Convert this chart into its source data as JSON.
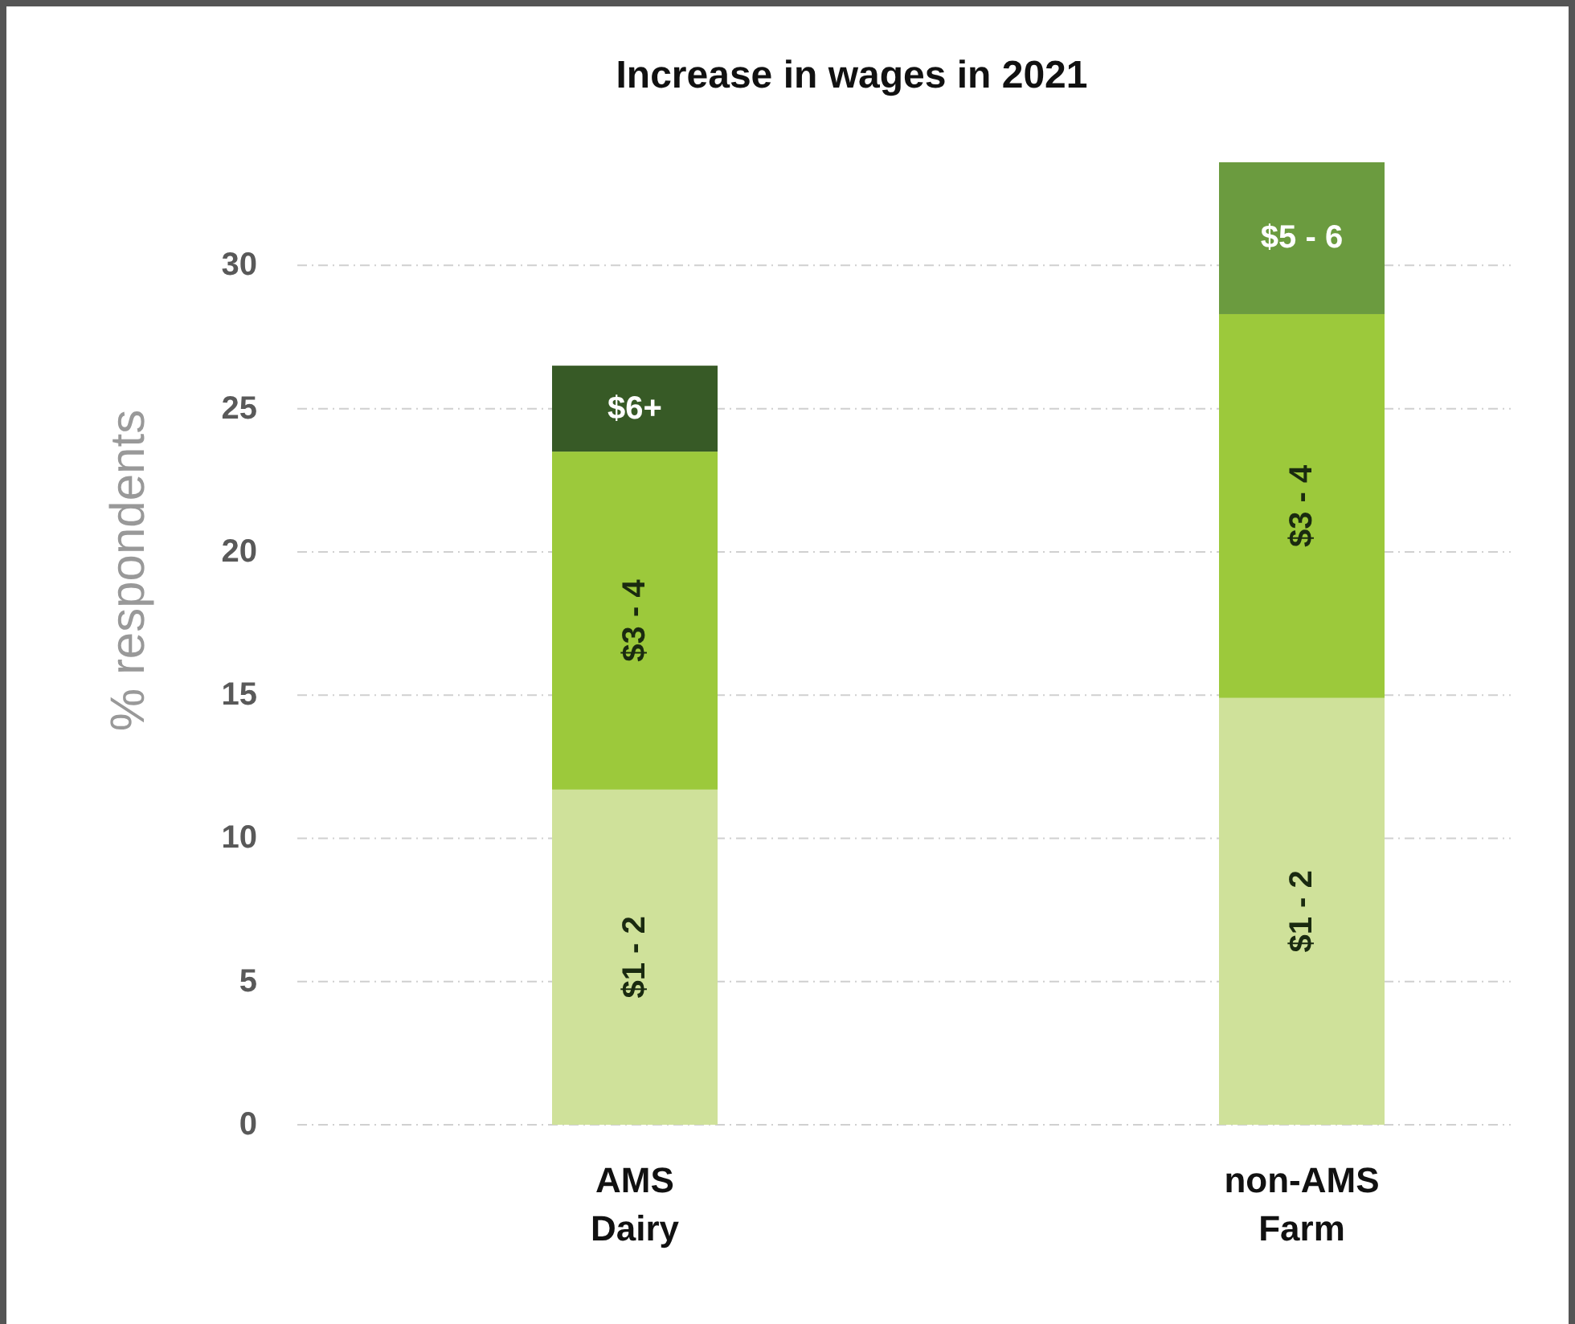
{
  "chart_data": {
    "type": "bar",
    "stacked": true,
    "title": "Increase in wages in 2021",
    "ylabel": "% respondents",
    "categories": [
      "AMS Dairy",
      "non-AMS Farm"
    ],
    "series": [
      {
        "name": "$1 - 2",
        "color": "#cfe19a",
        "values": [
          11.7,
          14.9
        ]
      },
      {
        "name": "$3 - 4",
        "color": "#9cc93b",
        "values": [
          11.8,
          13.4
        ]
      },
      {
        "name": "$5 - 6",
        "color": "#6b9b3f",
        "values": [
          null,
          5.3
        ]
      },
      {
        "name": "$6+",
        "color": "#375a26",
        "values": [
          3.0,
          null
        ]
      }
    ],
    "ylim": [
      0,
      33.6
    ],
    "yticks": [
      0,
      5,
      10,
      15,
      20,
      25,
      30
    ],
    "grid": "y"
  }
}
